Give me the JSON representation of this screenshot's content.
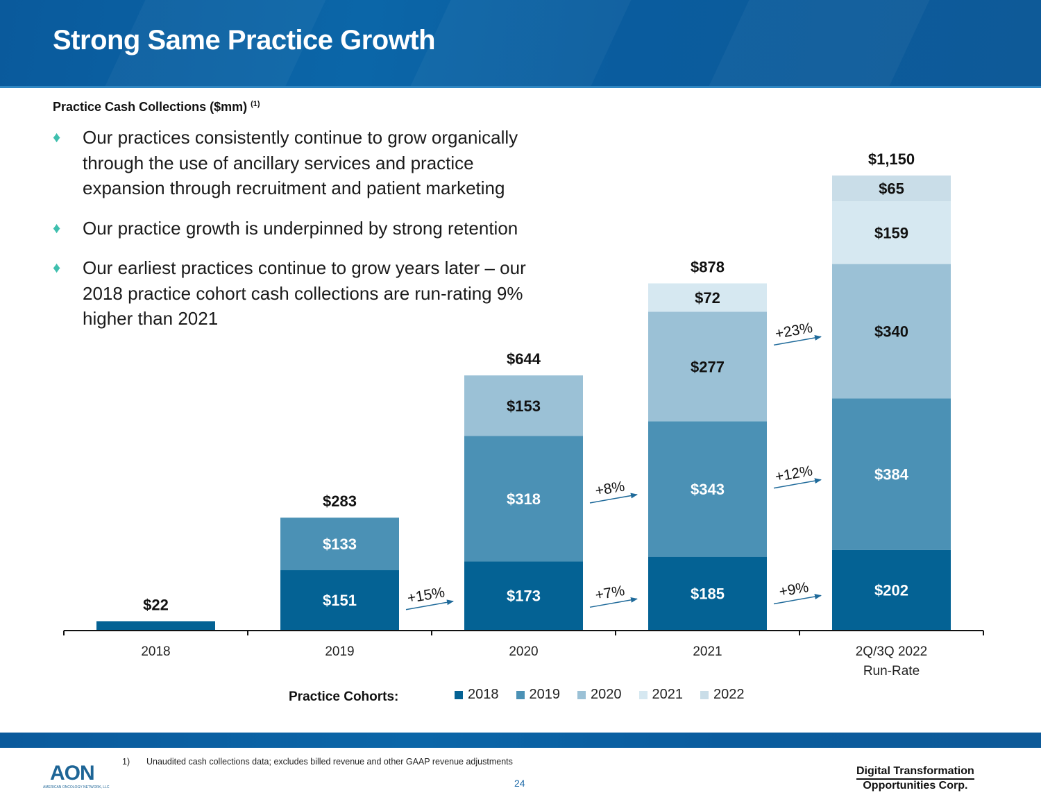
{
  "header": {
    "title": "Strong Same Practice Growth"
  },
  "subtitle": {
    "text": "Practice Cash Collections ($mm)",
    "footnote_ref": "(1)"
  },
  "bullets": [
    {
      "icon": "diamond-bullet-icon",
      "lines": [
        "Our practices consistently continue to grow organically",
        "through the use of ancillary services and practice",
        "expansion through recruitment and patient marketing"
      ]
    },
    {
      "icon": "diamond-bullet-icon",
      "lines": [
        "Our practice growth is underpinned by strong retention"
      ]
    },
    {
      "icon": "diamond-bullet-icon",
      "lines": [
        "Our earliest practices continue to grow years later – our",
        "2018 practice cohort cash collections are run-rating 9%",
        "higher than 2021"
      ]
    }
  ],
  "colors": {
    "header": "#0a5fa0",
    "bullet": "#3fbfae",
    "c2018": "#046294",
    "c2019": "#4b91b5",
    "c2020": "#9bc1d6",
    "c2021": "#d6e8f1",
    "c2022": "#c9dde8",
    "arrow": "#1f6a9a"
  },
  "chart_data": {
    "type": "bar",
    "stacked": true,
    "title": "Practice Cash Collections ($mm)",
    "categories": [
      "2018",
      "2019",
      "2020",
      "2021",
      "2Q/3Q 2022 Run-Rate"
    ],
    "category_lines": [
      [
        "2018"
      ],
      [
        "2019"
      ],
      [
        "2020"
      ],
      [
        "2021"
      ],
      [
        "2Q/3Q 2022",
        "Run-Rate"
      ]
    ],
    "series": [
      {
        "name": "2018",
        "values": [
          22,
          151,
          173,
          185,
          202
        ]
      },
      {
        "name": "2019",
        "values": [
          0,
          133,
          318,
          343,
          384
        ]
      },
      {
        "name": "2020",
        "values": [
          0,
          0,
          153,
          277,
          340
        ]
      },
      {
        "name": "2021",
        "values": [
          0,
          0,
          0,
          72,
          159
        ]
      },
      {
        "name": "2022",
        "values": [
          0,
          0,
          0,
          0,
          65
        ]
      }
    ],
    "totals": [
      "$22",
      "$283",
      "$644",
      "$878",
      "$1,150"
    ],
    "segment_labels": [
      [
        "",
        "$151",
        "$173",
        "$185",
        "$202"
      ],
      [
        "",
        "$133",
        "$318",
        "$343",
        "$384"
      ],
      [
        "",
        "",
        "$153",
        "$277",
        "$340"
      ],
      [
        "",
        "",
        "",
        "$72",
        "$159"
      ],
      [
        "",
        "",
        "",
        "",
        "$65"
      ]
    ],
    "growth_annotations": [
      {
        "from": 1,
        "series": "2018",
        "text": "+15%"
      },
      {
        "from": 2,
        "series": "2018",
        "text": "+7%"
      },
      {
        "from": 2,
        "series": "2019",
        "text": "+8%"
      },
      {
        "from": 3,
        "series": "2018",
        "text": "+9%"
      },
      {
        "from": 3,
        "series": "2019",
        "text": "+12%"
      },
      {
        "from": 3,
        "series": "2020",
        "text": "+23%"
      }
    ],
    "ylim": [
      0,
      1150
    ],
    "legend_title": "Practice Cohorts:",
    "legend_position": "bottom",
    "grid": false
  },
  "footer": {
    "footnote_num": "1)",
    "footnote_text": "Unaudited cash collections data; excludes billed revenue and other GAAP revenue adjustments",
    "page_number": "24",
    "logo_text": "AON",
    "logo_subtext": "AMERICAN ONCOLOGY NETWORK, LLC",
    "partner_line1": "Digital Transformation",
    "partner_line2": "Opportunities Corp."
  }
}
